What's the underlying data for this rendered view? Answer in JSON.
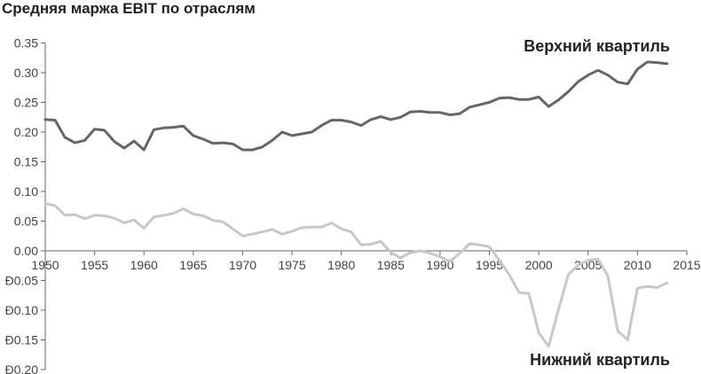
{
  "title": "Средняя маржа EBIT по отраслям",
  "chart_data": {
    "type": "line",
    "title": "Средняя маржа EBIT по отраслям",
    "xlabel": "",
    "ylabel": "",
    "xlim": [
      1950,
      2015
    ],
    "ylim": [
      -0.2,
      0.35
    ],
    "x_ticks": [
      "1950",
      "1955",
      "1960",
      "1965",
      "1970",
      "1975",
      "1980",
      "1985",
      "1990",
      "1995",
      "2000",
      "2005",
      "2010",
      "2015"
    ],
    "y_ticks": [
      {
        "value": 0.35,
        "label": "0.35"
      },
      {
        "value": 0.3,
        "label": "0.30"
      },
      {
        "value": 0.25,
        "label": "0.25"
      },
      {
        "value": 0.2,
        "label": "0.20"
      },
      {
        "value": 0.15,
        "label": "0.15"
      },
      {
        "value": 0.1,
        "label": "0.10"
      },
      {
        "value": 0.05,
        "label": "0.05"
      },
      {
        "value": 0.0,
        "label": "0.00"
      },
      {
        "value": -0.05,
        "label": "Ð0.05"
      },
      {
        "value": -0.1,
        "label": "Ð0.10"
      },
      {
        "value": -0.15,
        "label": "Ð0.15"
      },
      {
        "value": -0.2,
        "label": "Ð0.20"
      }
    ],
    "grid": false,
    "series": [
      {
        "name": "Верхний квартиль",
        "color": "#666666",
        "x": [
          1950,
          1951,
          1952,
          1953,
          1954,
          1955,
          1956,
          1957,
          1958,
          1959,
          1960,
          1961,
          1962,
          1963,
          1964,
          1965,
          1966,
          1967,
          1968,
          1969,
          1970,
          1971,
          1972,
          1973,
          1974,
          1975,
          1976,
          1977,
          1978,
          1979,
          1980,
          1981,
          1982,
          1983,
          1984,
          1985,
          1986,
          1987,
          1988,
          1989,
          1990,
          1991,
          1992,
          1993,
          1994,
          1995,
          1996,
          1997,
          1998,
          1999,
          2000,
          2001,
          2002,
          2003,
          2004,
          2005,
          2006,
          2007,
          2008,
          2009,
          2010,
          2011,
          2012,
          2013
        ],
        "y": [
          0.221,
          0.22,
          0.191,
          0.182,
          0.186,
          0.205,
          0.203,
          0.184,
          0.173,
          0.185,
          0.17,
          0.204,
          0.207,
          0.208,
          0.21,
          0.194,
          0.188,
          0.181,
          0.182,
          0.18,
          0.17,
          0.17,
          0.175,
          0.186,
          0.2,
          0.194,
          0.197,
          0.2,
          0.211,
          0.22,
          0.22,
          0.217,
          0.211,
          0.221,
          0.226,
          0.221,
          0.225,
          0.234,
          0.235,
          0.233,
          0.233,
          0.229,
          0.231,
          0.242,
          0.246,
          0.25,
          0.257,
          0.258,
          0.255,
          0.255,
          0.259,
          0.243,
          0.254,
          0.268,
          0.285,
          0.296,
          0.304,
          0.296,
          0.284,
          0.281,
          0.306,
          0.318,
          0.317,
          0.315
        ]
      },
      {
        "name": "Нижний квартиль",
        "color": "#c8c8c8",
        "x": [
          1950,
          1951,
          1952,
          1953,
          1954,
          1955,
          1956,
          1957,
          1958,
          1959,
          1960,
          1961,
          1962,
          1963,
          1964,
          1965,
          1966,
          1967,
          1968,
          1969,
          1970,
          1971,
          1972,
          1973,
          1974,
          1975,
          1976,
          1977,
          1978,
          1979,
          1980,
          1981,
          1982,
          1983,
          1984,
          1985,
          1986,
          1987,
          1988,
          1989,
          1990,
          1991,
          1992,
          1993,
          1994,
          1995,
          1996,
          1997,
          1998,
          1999,
          2000,
          2001,
          2002,
          2003,
          2004,
          2005,
          2006,
          2007,
          2008,
          2009,
          2010,
          2011,
          2012,
          2013
        ],
        "y": [
          0.08,
          0.076,
          0.06,
          0.061,
          0.054,
          0.06,
          0.059,
          0.055,
          0.047,
          0.052,
          0.038,
          0.057,
          0.06,
          0.063,
          0.071,
          0.062,
          0.059,
          0.051,
          0.049,
          0.037,
          0.025,
          0.028,
          0.032,
          0.036,
          0.028,
          0.033,
          0.039,
          0.04,
          0.04,
          0.047,
          0.037,
          0.032,
          0.01,
          0.011,
          0.016,
          -0.003,
          -0.012,
          -0.003,
          0.0,
          -0.004,
          -0.01,
          -0.018,
          -0.004,
          0.012,
          0.01,
          0.007,
          -0.016,
          -0.04,
          -0.07,
          -0.072,
          -0.138,
          -0.161,
          -0.099,
          -0.04,
          -0.024,
          -0.016,
          -0.014,
          -0.042,
          -0.135,
          -0.15,
          -0.063,
          -0.06,
          -0.062,
          -0.054
        ]
      }
    ],
    "annotations": [
      "Верхний квартиль",
      "Нижний квартиль"
    ]
  }
}
